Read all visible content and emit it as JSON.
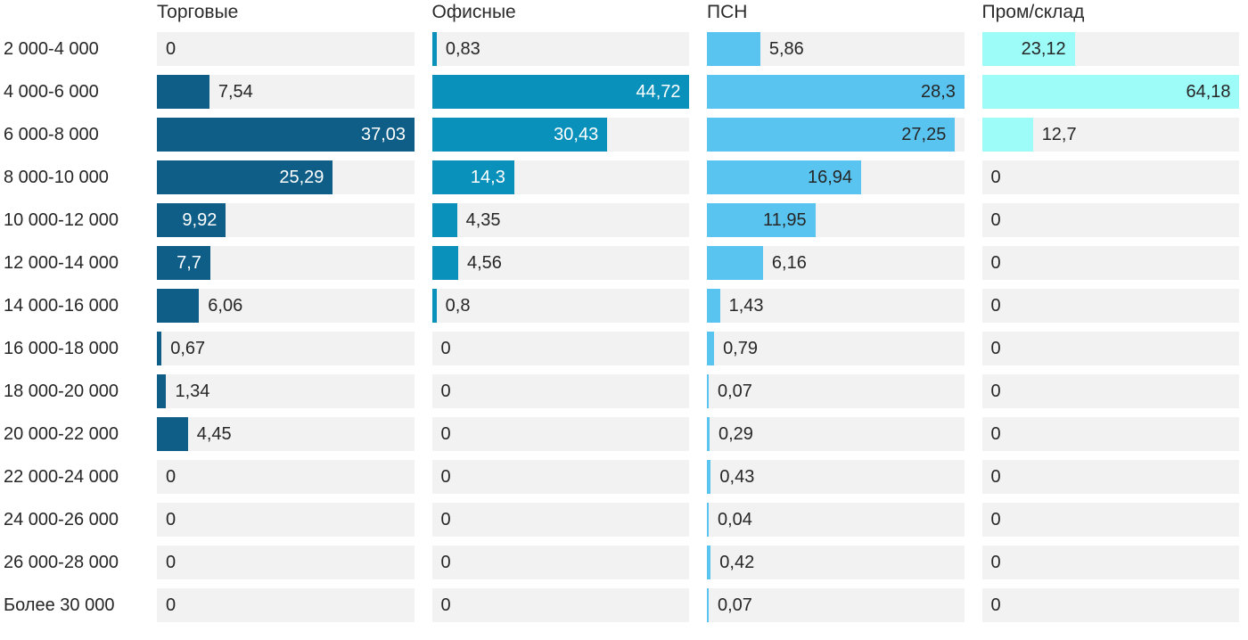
{
  "chart_data": {
    "type": "bar",
    "orientation": "horizontal",
    "scaling": "each column scaled to its own maximum value",
    "background": "#ffffff",
    "track_color": "#f2f2f2",
    "text_color": "#262626",
    "categories": [
      "2 000-4 000",
      "4 000-6 000",
      "6 000-8 000",
      "8 000-10 000",
      "10 000-12 000",
      "12 000-14 000",
      "14 000-16 000",
      "16 000-18 000",
      "18 000-20 000",
      "20 000-22 000",
      "22 000-24 000",
      "24 000-26 000",
      "26 000-28 000",
      "Более 30 000"
    ],
    "series": [
      {
        "name": "Торговые",
        "color": "#0e5e87",
        "label_inside_color": "#ffffff",
        "values": [
          0,
          7.54,
          37.03,
          25.29,
          9.92,
          7.7,
          6.06,
          0.67,
          1.34,
          4.45,
          0,
          0,
          0,
          0
        ],
        "labels": [
          "0",
          "7,54",
          "37,03",
          "25,29",
          "9,92",
          "7,7",
          "6,06",
          "0,67",
          "1,34",
          "4,45",
          "0",
          "0",
          "0",
          "0"
        ]
      },
      {
        "name": "Офисные",
        "color": "#0991bb",
        "label_inside_color": "#ffffff",
        "values": [
          0.83,
          44.72,
          30.43,
          14.3,
          4.35,
          4.56,
          0.8,
          0,
          0,
          0,
          0,
          0,
          0,
          0
        ],
        "labels": [
          "0,83",
          "44,72",
          "30,43",
          "14,3",
          "4,35",
          "4,56",
          "0,8",
          "0",
          "0",
          "0",
          "0",
          "0",
          "0",
          "0"
        ]
      },
      {
        "name": "ПСН",
        "color": "#5ac4f1",
        "label_inside_color": "#262626",
        "values": [
          5.86,
          28.3,
          27.25,
          16.94,
          11.95,
          6.16,
          1.43,
          0.79,
          0.07,
          0.29,
          0.43,
          0.04,
          0.42,
          0.07
        ],
        "labels": [
          "5,86",
          "28,3",
          "27,25",
          "16,94",
          "11,95",
          "6,16",
          "1,43",
          "0,79",
          "0,07",
          "0,29",
          "0,43",
          "0,04",
          "0,42",
          "0,07"
        ]
      },
      {
        "name": "Пром/склад",
        "color": "#9efcf8",
        "label_inside_color": "#262626",
        "values": [
          23.12,
          64.18,
          12.7,
          0,
          0,
          0,
          0,
          0,
          0,
          0,
          0,
          0,
          0,
          0
        ],
        "labels": [
          "23,12",
          "64,18",
          "12,7",
          "0",
          "0",
          "0",
          "0",
          "0",
          "0",
          "0",
          "0",
          "0",
          "0",
          "0"
        ]
      }
    ]
  }
}
